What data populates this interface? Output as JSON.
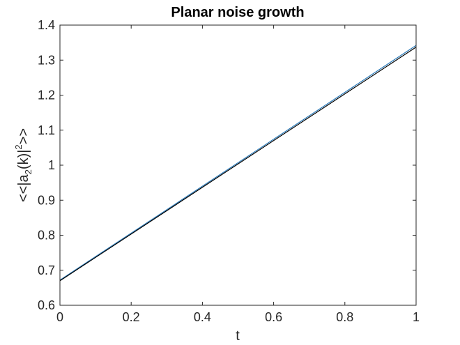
{
  "chart_data": {
    "type": "line",
    "title": "Planar noise growth",
    "xlabel": "t",
    "ylabel": {
      "prefix": "<<|a",
      "sub": "2",
      "middle": "(k)|",
      "sup": "2",
      "suffix": ">>"
    },
    "xlim": [
      0,
      1
    ],
    "ylim": [
      0.6,
      1.4
    ],
    "xticks": [
      0,
      0.2,
      0.4,
      0.6,
      0.8,
      1
    ],
    "xtick_labels": [
      "0",
      "0.2",
      "0.4",
      "0.6",
      "0.8",
      "1"
    ],
    "yticks": [
      0.6,
      0.7,
      0.8,
      0.9,
      1.0,
      1.1,
      1.2,
      1.3,
      1.4
    ],
    "ytick_labels": [
      "0.6",
      "0.7",
      "0.8",
      "0.9",
      "1",
      "1.1",
      "1.2",
      "1.3",
      "1.4"
    ],
    "grid": false,
    "series": [
      {
        "color": "#2a7ab9",
        "x": [
          0,
          0.1,
          0.2,
          0.3,
          0.4,
          0.5,
          0.6,
          0.7,
          0.8,
          0.9,
          1.0
        ],
        "y": [
          0.672,
          0.739,
          0.806,
          0.873,
          0.94,
          1.007,
          1.074,
          1.141,
          1.208,
          1.275,
          1.342
        ]
      },
      {
        "color": "#000000",
        "x": [
          0,
          1
        ],
        "y": [
          0.67,
          1.337
        ]
      }
    ]
  }
}
